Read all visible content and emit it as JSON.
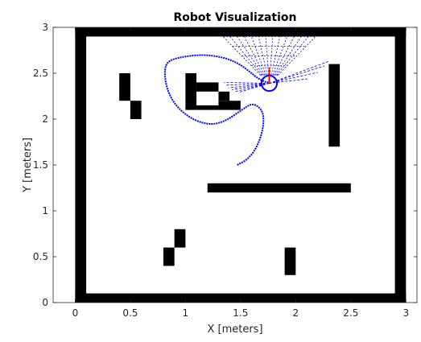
{
  "chart_data": {
    "type": "scatter",
    "title": "Robot Visualization",
    "xlabel": "X [meters]",
    "ylabel": "Y [meters]",
    "xlim": [
      -0.2,
      3.1
    ],
    "ylim": [
      0,
      3
    ],
    "x_ticks": [
      "0",
      "0.5",
      "1",
      "1.5",
      "2",
      "2.5",
      "3"
    ],
    "y_ticks": [
      "0",
      "0.5",
      "1",
      "1.5",
      "2",
      "2.5",
      "3"
    ],
    "grid": false,
    "colors": {
      "obstacle": "#000000",
      "path": "#0000ff",
      "lidar": "#0000ff",
      "heading": "#ff0000"
    },
    "obstacles": [
      {
        "x0": 0.0,
        "y0": 0.0,
        "x1": 3.0,
        "y1": 0.1
      },
      {
        "x0": 0.0,
        "y0": 2.9,
        "x1": 3.0,
        "y1": 3.0
      },
      {
        "x0": 0.0,
        "y0": 0.0,
        "x1": 0.1,
        "y1": 3.0
      },
      {
        "x0": 2.9,
        "y0": 0.0,
        "x1": 3.0,
        "y1": 3.0
      },
      {
        "x0": 0.4,
        "y0": 2.2,
        "x1": 0.5,
        "y1": 2.5
      },
      {
        "x0": 0.5,
        "y0": 2.0,
        "x1": 0.6,
        "y1": 2.2
      },
      {
        "x0": 1.0,
        "y0": 2.1,
        "x1": 1.1,
        "y1": 2.5
      },
      {
        "x0": 1.1,
        "y0": 2.3,
        "x1": 1.3,
        "y1": 2.4
      },
      {
        "x0": 1.3,
        "y0": 2.1,
        "x1": 1.5,
        "y1": 2.2
      },
      {
        "x0": 1.3,
        "y0": 2.2,
        "x1": 1.4,
        "y1": 2.3
      },
      {
        "x0": 1.1,
        "y0": 2.1,
        "x1": 1.3,
        "y1": 2.15
      },
      {
        "x0": 2.3,
        "y0": 1.7,
        "x1": 2.4,
        "y1": 2.6
      },
      {
        "x0": 1.2,
        "y0": 1.2,
        "x1": 2.5,
        "y1": 1.3
      },
      {
        "x0": 0.9,
        "y0": 0.6,
        "x1": 1.0,
        "y1": 0.8
      },
      {
        "x0": 0.8,
        "y0": 0.4,
        "x1": 0.9,
        "y1": 0.6
      },
      {
        "x0": 1.9,
        "y0": 0.3,
        "x1": 2.0,
        "y1": 0.6
      }
    ],
    "path": {
      "x": [
        1.47,
        1.55,
        1.62,
        1.67,
        1.7,
        1.71,
        1.7,
        1.66,
        1.6,
        1.51,
        1.38,
        1.26,
        1.14,
        1.02,
        0.91,
        0.84,
        0.81,
        0.82,
        0.86,
        0.94,
        1.04,
        1.15,
        1.26,
        1.38,
        1.49,
        1.58,
        1.65,
        1.71,
        1.75
      ],
      "y": [
        1.5,
        1.55,
        1.64,
        1.76,
        1.88,
        1.99,
        2.08,
        2.14,
        2.17,
        2.1,
        1.99,
        1.94,
        1.96,
        2.03,
        2.15,
        2.3,
        2.47,
        2.59,
        2.64,
        2.67,
        2.69,
        2.7,
        2.69,
        2.66,
        2.6,
        2.52,
        2.45,
        2.41,
        2.4
      ]
    },
    "robot": {
      "x": 1.76,
      "y": 2.39,
      "radius": 0.07,
      "heading_deg": 90
    },
    "lidar_rays": [
      {
        "x": 1.35,
        "y": 2.4
      },
      {
        "x": 1.37,
        "y": 2.37
      },
      {
        "x": 1.39,
        "y": 2.34
      },
      {
        "x": 1.42,
        "y": 2.32
      },
      {
        "x": 1.45,
        "y": 2.3
      },
      {
        "x": 1.48,
        "y": 2.29
      },
      {
        "x": 2.12,
        "y": 2.44
      },
      {
        "x": 2.2,
        "y": 2.51
      },
      {
        "x": 2.26,
        "y": 2.58
      },
      {
        "x": 2.3,
        "y": 2.63
      }
    ],
    "lidar_fan": {
      "y_top": 2.9,
      "y_bottom": 2.48,
      "half_width_top": 0.42,
      "half_width_bottom": 0.08,
      "count": 14
    }
  }
}
